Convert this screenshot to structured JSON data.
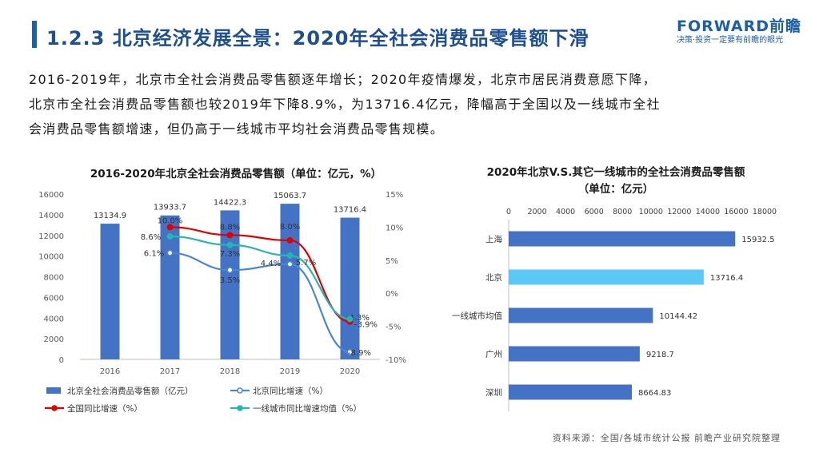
{
  "header": {
    "title": "1.2.3 北京经济发展全景：2020年全社会消费品零售额下滑",
    "logo_name": "FORWARD前瞻",
    "logo_slogan": "决策·投资一定要有前瞻的眼光"
  },
  "summary": [
    "2016-2019年，北京市全社会消费品零售额逐年增长；2020年疫情爆发，北京市居民消费意愿下降，",
    "北京市全社会消费品零售额也较2019年下降8.9%，为13716.4亿元，降幅高于全国以及一线城市全社",
    "会消费品零售额增速，但仍高于一线城市平均社会消费品零售规模。"
  ],
  "source": "资料来源：全国/各城市统计公报 前瞻产业研究院整理",
  "colors": {
    "bar": "#4472c4",
    "bar_highlight": "#5bc8f5",
    "beijing_growth": "#4a86d4",
    "national_growth": "#e00000",
    "tier1_growth": "#26b5b2",
    "title": "#1e4f8f"
  },
  "chart_data": [
    {
      "type": "bar",
      "title": "2016-2020年北京全社会消费品零售额（单位：亿元，%）",
      "categories": [
        "2016",
        "2017",
        "2018",
        "2019",
        "2020"
      ],
      "y_left_ticks": [
        "0",
        "2000",
        "4000",
        "6000",
        "8000",
        "10000",
        "12000",
        "14000",
        "16000"
      ],
      "y_right_ticks": [
        "-10%",
        "-5%",
        "0%",
        "5%",
        "10%",
        "15%"
      ],
      "ylim_left": [
        0,
        16000
      ],
      "ylim_right": [
        -10,
        15
      ],
      "series": [
        {
          "name": "北京全社会消费品零售额（亿元）",
          "axis": "left",
          "values": [
            13134.9,
            13933.7,
            14422.3,
            15063.7,
            13716.4
          ],
          "labels": [
            "13134.9",
            "13933.7",
            "14422.3",
            "15063.7",
            "13716.4"
          ]
        },
        {
          "name": "北京同比增速（%）",
          "axis": "right",
          "values": [
            null,
            6.1,
            3.5,
            4.4,
            -8.9
          ],
          "labels": [
            "",
            "6.1%",
            "3.5%",
            "4.4%",
            "-8.9%"
          ]
        },
        {
          "name": "全国同比增速（%）",
          "axis": "right",
          "values": [
            null,
            10.0,
            8.8,
            8.0,
            -4.3
          ],
          "labels": [
            "",
            "10.0%",
            "8.8%",
            "8.0%",
            "-4.3%"
          ]
        },
        {
          "name": "一线城市同比增速均值（%）",
          "axis": "right",
          "values": [
            null,
            8.6,
            7.3,
            5.7,
            -3.9
          ],
          "labels": [
            "",
            "8.6%",
            "7.3%",
            "5.7%",
            "-3.9%"
          ]
        }
      ],
      "legend_position": "bottom"
    },
    {
      "type": "bar",
      "orientation": "horizontal",
      "title_lines": [
        "2020年北京V.S.其它一线城市的全社会消费品零售额",
        "（单位：亿元）"
      ],
      "categories": [
        "上海",
        "北京",
        "一线城市均值",
        "广州",
        "深圳"
      ],
      "values": [
        15932.5,
        13716.4,
        10144.42,
        9218.7,
        8664.83
      ],
      "labels": [
        "15932.5",
        "13716.4",
        "10144.42",
        "9218.7",
        "8664.83"
      ],
      "x_ticks": [
        "0",
        "2000",
        "4000",
        "6000",
        "8000",
        "10000",
        "12000",
        "14000",
        "16000",
        "18000"
      ],
      "xlim": [
        0,
        18000
      ],
      "highlight": "北京"
    }
  ]
}
